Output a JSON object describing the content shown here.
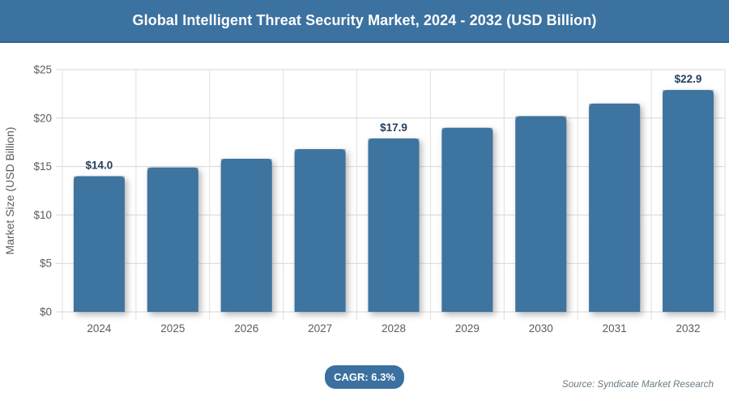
{
  "header": {
    "title": "Global Intelligent Threat Security Market, 2024 - 2032 (USD Billion)",
    "bg_color": "#3C72A0"
  },
  "chart_data": {
    "type": "bar",
    "title": "Global Intelligent Threat Security Market, 2024 - 2032 (USD Billion)",
    "categories": [
      "2024",
      "2025",
      "2026",
      "2027",
      "2028",
      "2029",
      "2030",
      "2031",
      "2032"
    ],
    "values": [
      14.0,
      14.9,
      15.8,
      16.8,
      17.9,
      19.0,
      20.2,
      21.5,
      22.9
    ],
    "value_labels": [
      {
        "index": 0,
        "text": "$14.0"
      },
      {
        "index": 4,
        "text": "$17.9"
      },
      {
        "index": 8,
        "text": "$22.9"
      }
    ],
    "xlabel": "",
    "ylabel": "Market Size (USD Billion)",
    "ylim": [
      0,
      25
    ],
    "ytick_step": 5,
    "ytick_labels": [
      "$0",
      "$5",
      "$10",
      "$15",
      "$20",
      "$25"
    ],
    "grid": true,
    "legend": "none",
    "bar_color": "#3D74A0",
    "label_color": "#24405E",
    "axis_text_color": "#5B5C60"
  },
  "footer": {
    "cagr_label": "CAGR: 6.3%",
    "cagr_bg_color": "#3B70A0",
    "source": "Source: Syndicate Market Research"
  }
}
